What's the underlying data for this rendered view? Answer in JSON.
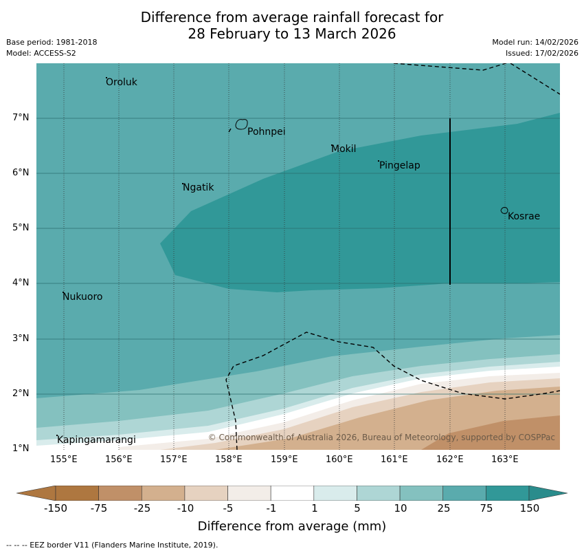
{
  "title": {
    "line1": "Difference from average rainfall forecast for",
    "line2": "28 February to 13 March 2026"
  },
  "meta": {
    "base_period": "Base period: 1981-2018",
    "model": "Model: ACCESS-S2",
    "model_run": "Model run: 14/02/2026",
    "issued": "Issued: 17/02/2026"
  },
  "map": {
    "lat_ticks": [
      "7°N",
      "6°N",
      "5°N",
      "4°N",
      "3°N",
      "2°N",
      "1°N"
    ],
    "lon_ticks": [
      "155°E",
      "156°E",
      "157°E",
      "158°E",
      "159°E",
      "160°E",
      "161°E",
      "162°E",
      "163°E"
    ],
    "places": [
      {
        "name": "Oroluk"
      },
      {
        "name": "Pohnpei"
      },
      {
        "name": "Mokil"
      },
      {
        "name": "Pingelap"
      },
      {
        "name": "Ngatik"
      },
      {
        "name": "Kosrae"
      },
      {
        "name": "Nukuoro"
      },
      {
        "name": "Kapingamarangi"
      }
    ],
    "copyright": "© Commonwealth of Australia 2026, Bureau of Meteorology, supported by COSPPac"
  },
  "colorbar": {
    "labels": [
      "-150",
      "-75",
      "-25",
      "-10",
      "-5",
      "-1",
      "1",
      "5",
      "10",
      "25",
      "75",
      "150"
    ],
    "colors": [
      "#ae7740",
      "#c09068",
      "#d3b08e",
      "#e6d2c0",
      "#f3ede8",
      "#ffffff",
      "#d9ecec",
      "#aed6d5",
      "#84c1bf",
      "#5aabad",
      "#319898",
      "#2a8c8c"
    ],
    "title": "Difference from average (mm)"
  },
  "footer": "--  --  -- EEZ border V11 (Flanders Marine Institute, 2019)."
}
